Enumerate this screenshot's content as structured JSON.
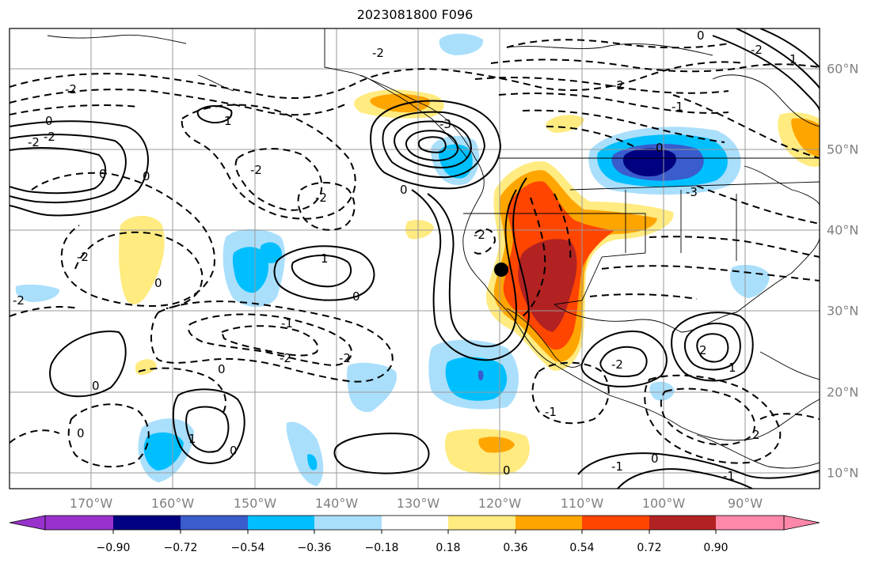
{
  "title": "2023081800 F096",
  "map": {
    "projection": "plate-carree",
    "lon_range": [
      -180,
      -81
    ],
    "lat_range": [
      8,
      65
    ],
    "lat_labels": [
      "60°N",
      "50°N",
      "40°N",
      "30°N",
      "20°N",
      "10°N"
    ],
    "lon_labels": [
      "170°W",
      "160°W",
      "150°W",
      "140°W",
      "130°W",
      "120°W",
      "110°W",
      "100°W",
      "90°W"
    ],
    "contour_labels": [
      "0",
      "-2",
      "-2",
      "0",
      "1",
      "-2",
      "0",
      "-3",
      "0",
      "-2",
      "-1",
      "-2",
      "0",
      "-3",
      "-2",
      "1",
      "0",
      "-2",
      "-2",
      "0",
      "-1",
      "-2",
      "-2",
      "0",
      "0",
      "1",
      "0",
      "0",
      "-2",
      "-2",
      "1",
      "0",
      "-1",
      "-1",
      "0",
      "-1",
      "2",
      "1",
      "-2",
      "0",
      "-2",
      "2"
    ],
    "fill_colors": {
      "neg_strong": "#000080",
      "neg_medium": "#3a5ccc",
      "neg_light": "#00bfff",
      "neg_faint": "#aadffc",
      "pos_faint": "#ffeb80",
      "pos_light": "#ffa500",
      "pos_medium": "#ff4500",
      "pos_strong": "#b22222"
    },
    "marker": {
      "name": "point-marker",
      "lon": -119.3,
      "lat": 35.0,
      "color": "#000000"
    }
  },
  "colorbar": {
    "colors": [
      "#9932cc",
      "#000080",
      "#3a5ccc",
      "#00bfff",
      "#aadffc",
      "#ffffff",
      "#ffeb80",
      "#ffa500",
      "#ff4500",
      "#b22222",
      "#ff88aa"
    ],
    "tick_labels": [
      "−0.90",
      "−0.72",
      "−0.54",
      "−0.36",
      "−0.18",
      "0.18",
      "0.36",
      "0.54",
      "0.72",
      "0.90"
    ],
    "extend": "both"
  }
}
